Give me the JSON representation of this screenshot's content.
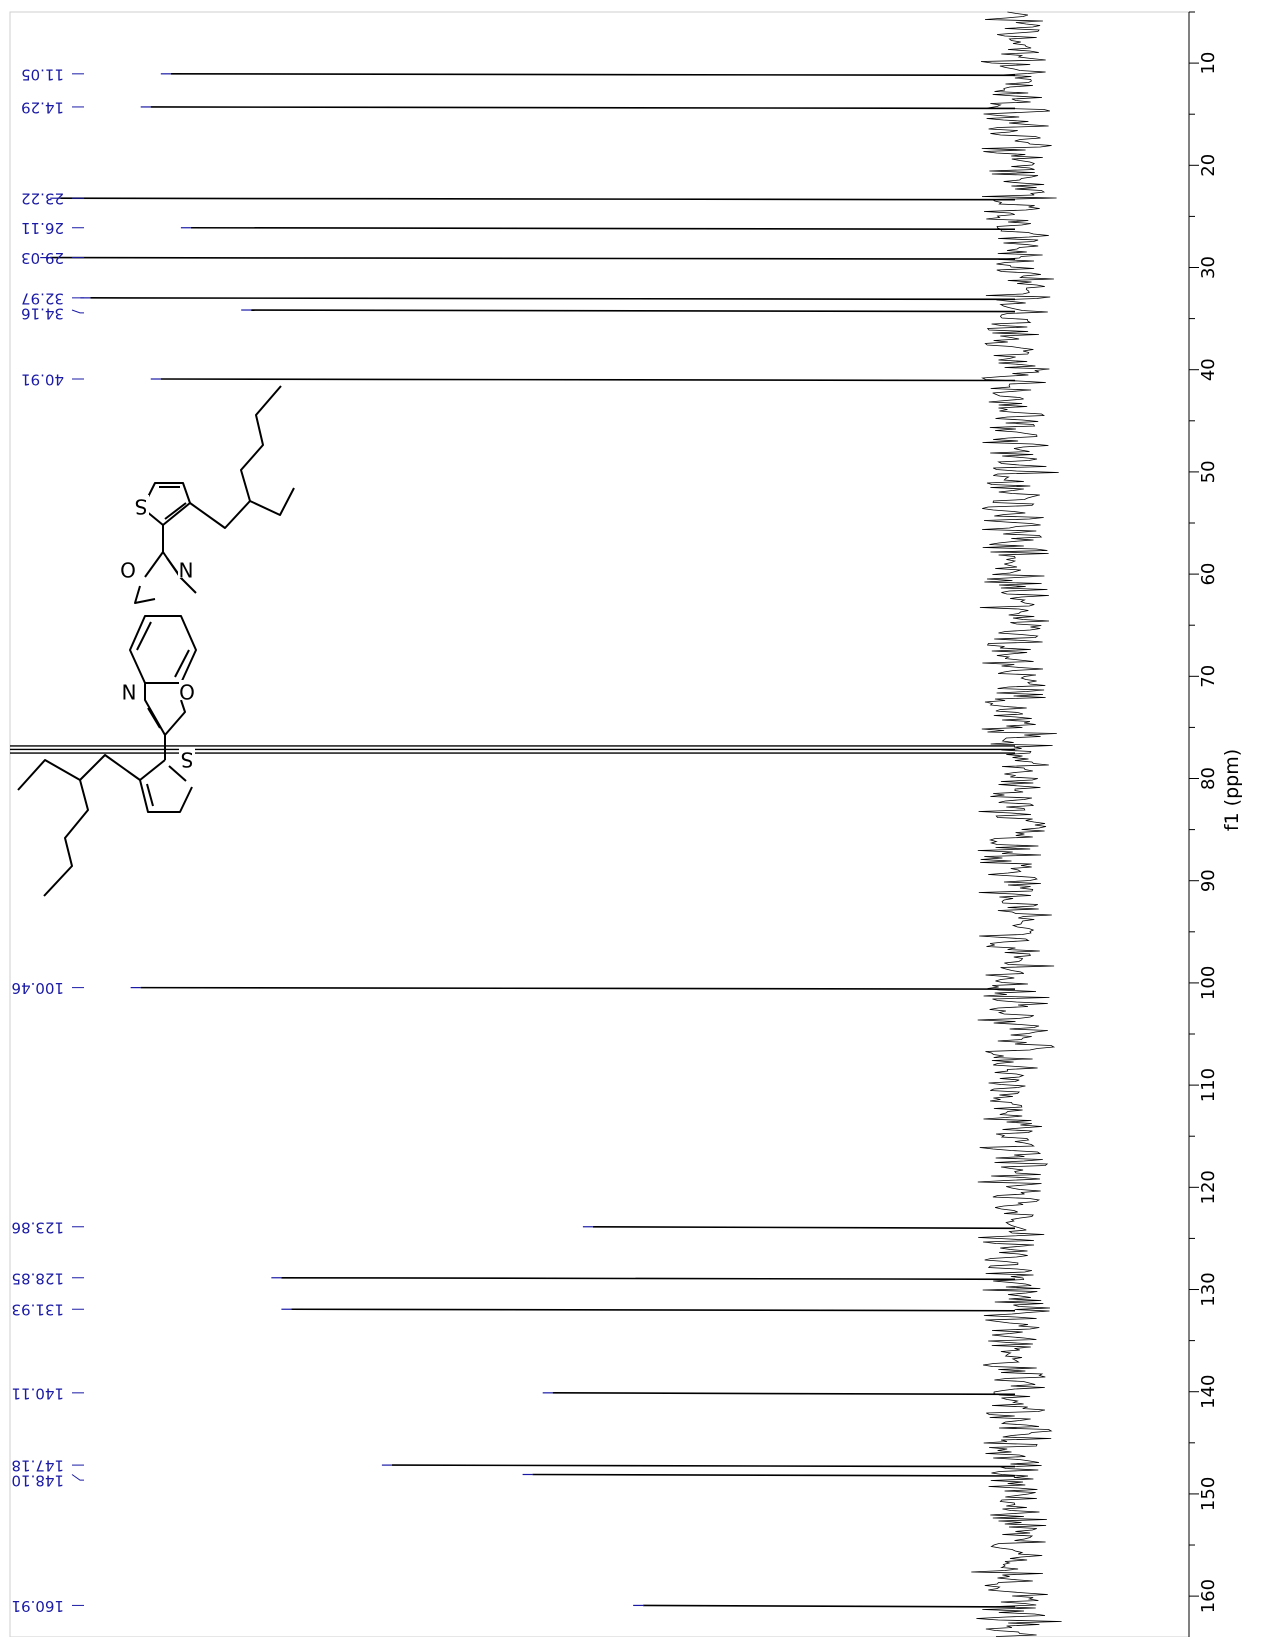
{
  "chart_data": {
    "type": "line",
    "title": "",
    "axis_label": "f1 (ppm)",
    "axis_range": [
      5,
      164
    ],
    "ticks": [
      10,
      20,
      30,
      40,
      50,
      60,
      70,
      80,
      90,
      100,
      110,
      120,
      130,
      140,
      150,
      160
    ],
    "peaks": [
      {
        "ppm": 11.05,
        "label": "11.05",
        "intensity": 0.84
      },
      {
        "ppm": 14.29,
        "label": "14.29",
        "intensity": 0.86
      },
      {
        "ppm": 23.22,
        "label": "23.22",
        "intensity": 0.95
      },
      {
        "ppm": 26.11,
        "label": "26.11",
        "intensity": 0.82
      },
      {
        "ppm": 29.03,
        "label": "29.03",
        "intensity": 0.96
      },
      {
        "ppm": 32.97,
        "label": "32.97",
        "intensity": 0.92
      },
      {
        "ppm": 34.16,
        "label": "34.16",
        "intensity": 0.76
      },
      {
        "ppm": 40.91,
        "label": "40.91",
        "intensity": 0.85
      },
      {
        "ppm": 100.46,
        "label": "100.46",
        "intensity": 0.87
      },
      {
        "ppm": 123.86,
        "label": "123.86",
        "intensity": 0.42
      },
      {
        "ppm": 128.85,
        "label": "128.85",
        "intensity": 0.73
      },
      {
        "ppm": 131.93,
        "label": "131.93",
        "intensity": 0.72
      },
      {
        "ppm": 140.11,
        "label": "140.11",
        "intensity": 0.46
      },
      {
        "ppm": 147.18,
        "label": "147.18",
        "intensity": 0.62
      },
      {
        "ppm": 148.1,
        "label": "148.10",
        "intensity": 0.48
      },
      {
        "ppm": 160.91,
        "label": "160.91",
        "intensity": 0.37
      }
    ],
    "solvent_peak": {
      "ppm": 77.16,
      "intensity": 1.0
    },
    "structure_atom_labels": [
      "S",
      "O",
      "N",
      "N",
      "O",
      "S"
    ]
  }
}
